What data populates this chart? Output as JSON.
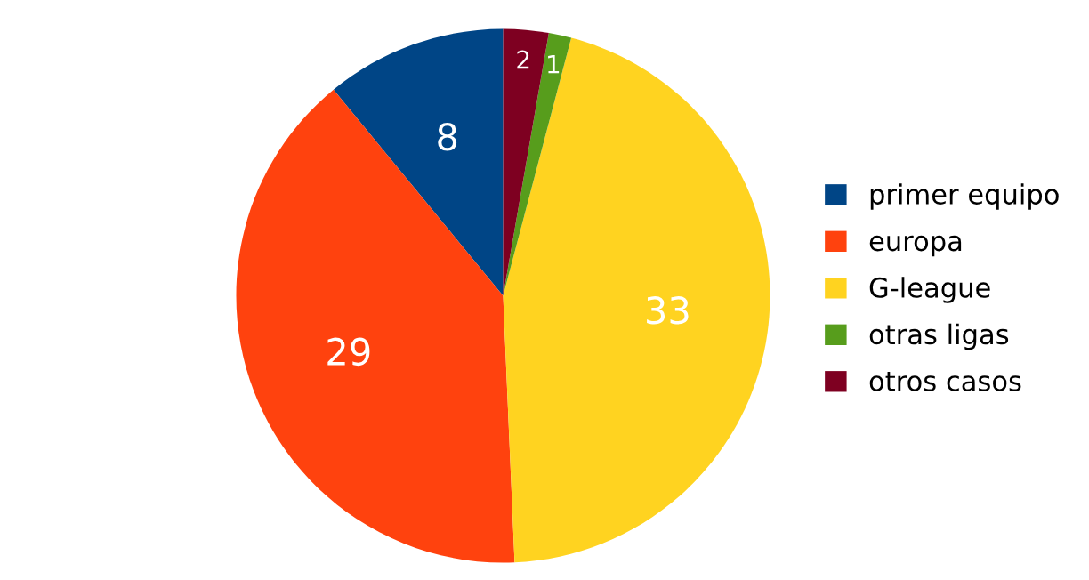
{
  "chart_data": {
    "type": "pie",
    "categories": [
      "primer equipo",
      "europa",
      "G-league",
      "otras ligas",
      "otros casos"
    ],
    "values": [
      8,
      29,
      33,
      1,
      2
    ],
    "colors": [
      "#004586",
      "#ff420e",
      "#ffd320",
      "#579d1c",
      "#7e0021"
    ],
    "data_labels": true,
    "legend": "right"
  }
}
